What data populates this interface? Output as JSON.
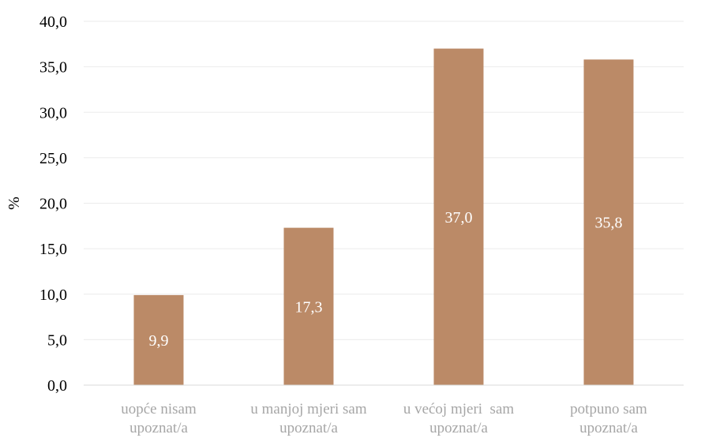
{
  "chart_data": {
    "type": "bar",
    "ylabel": "%",
    "ylim": [
      0,
      40
    ],
    "yticks": [
      "0,0",
      "5,0",
      "10,0",
      "15,0",
      "20,0",
      "25,0",
      "30,0",
      "35,0",
      "40,0"
    ],
    "categories": [
      [
        "uopće nisam",
        "upoznat/a"
      ],
      [
        "u manjoj mjeri sam",
        "upoznat/a"
      ],
      [
        "u većoj mjeri  sam",
        "upoznat/a"
      ],
      [
        "potpuno sam",
        "upoznat/a"
      ]
    ],
    "values": [
      9.9,
      17.3,
      37.0,
      35.8
    ],
    "value_labels": [
      "9,9",
      "17,3",
      "37,0",
      "35,8"
    ],
    "grid": true,
    "legend": "none",
    "colors": {
      "bar": "#bb8a67",
      "grid": "#ebebeb",
      "axis": "#d9d9d9",
      "category_text": "#a6a6a6",
      "data_label_text": "#ffffff"
    }
  }
}
